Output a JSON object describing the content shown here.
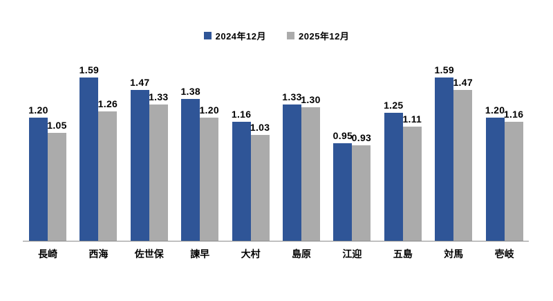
{
  "chart_data": {
    "type": "bar",
    "title": "",
    "xlabel": "",
    "ylabel": "",
    "ylim": [
      0,
      1.8
    ],
    "grid": false,
    "legend_position": "top-center",
    "value_labels": "shown above each bar, 2 decimals",
    "axis_color": "#8a8a8a",
    "label_color": "#000000",
    "background_color": "#ffffff",
    "categories": [
      "長崎",
      "西海",
      "佐世保",
      "諫早",
      "大村",
      "島原",
      "江迎",
      "五島",
      "対馬",
      "壱岐"
    ],
    "series": [
      {
        "name": "2024年12月",
        "color": "#2F5597",
        "values": [
          1.2,
          1.59,
          1.47,
          1.38,
          1.16,
          1.33,
          0.95,
          1.25,
          1.59,
          1.2
        ]
      },
      {
        "name": "2025年12月",
        "color": "#ABABAB",
        "values": [
          1.05,
          1.26,
          1.33,
          1.2,
          1.03,
          1.3,
          0.93,
          1.11,
          1.47,
          1.16
        ]
      }
    ]
  }
}
